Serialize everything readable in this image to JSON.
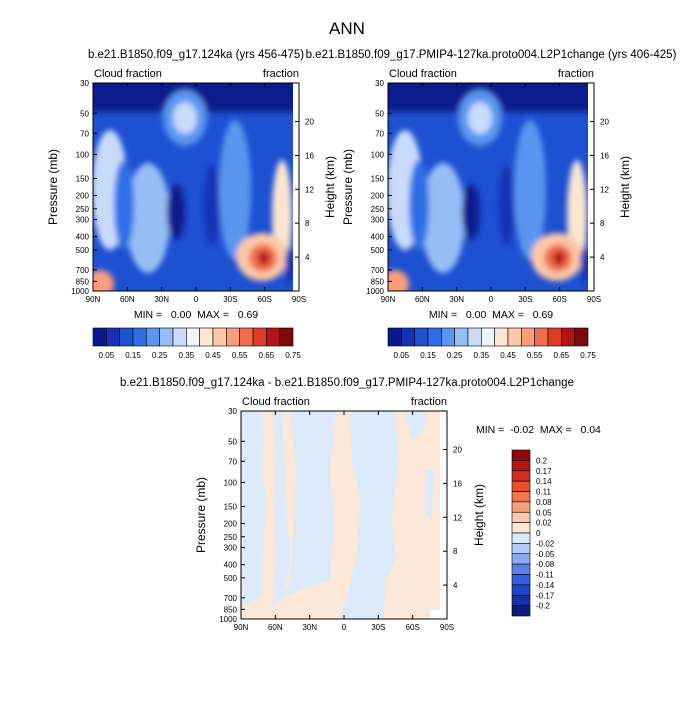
{
  "page_title": "ANN",
  "chart_data": [
    {
      "type": "heatmap",
      "title": "b.e21.B1850.f09_g17.124ka (yrs 456-475)",
      "left_label": "Cloud fraction",
      "right_label": "fraction",
      "ylabel": "Pressure (mb)",
      "ylabel2": "Height (km)",
      "x_ticks": [
        "90N",
        "60N",
        "30N",
        "0",
        "30S",
        "60S",
        "90S"
      ],
      "y_ticks": [
        "30",
        "50",
        "70",
        "100",
        "150",
        "200",
        "250",
        "300",
        "400",
        "500",
        "700",
        "850",
        "1000"
      ],
      "y2_ticks": [
        "20",
        "16",
        "12",
        "8",
        "4"
      ],
      "stats": "MIN =   0.00  MAX =   0.69",
      "min": 0.0,
      "max": 0.69,
      "colorbar_labels": [
        "0.05",
        "0.15",
        "0.25",
        "0.35",
        "0.45",
        "0.55",
        "0.65",
        "0.75"
      ],
      "colorbar_colors": [
        "#0a1a8c",
        "#1432b4",
        "#1e50d2",
        "#2d6ee6",
        "#5a96f0",
        "#96bef5",
        "#c8dcfa",
        "#f0f4fc",
        "#fce6d2",
        "#fcc8a8",
        "#fa9e7c",
        "#f06e50",
        "#dc3c28",
        "#b41414",
        "#7d0a0a"
      ]
    },
    {
      "type": "heatmap",
      "title": "b.e21.B1850.f09_g17.PMIP4-127ka.proto004.L2P1change (yrs 406-425)",
      "left_label": "Cloud fraction",
      "right_label": "fraction",
      "ylabel": "Pressure (mb)",
      "ylabel2": "Height (km)",
      "x_ticks": [
        "90N",
        "60N",
        "30N",
        "0",
        "30S",
        "60S",
        "90S"
      ],
      "y_ticks": [
        "30",
        "50",
        "70",
        "100",
        "150",
        "200",
        "250",
        "300",
        "400",
        "500",
        "700",
        "850",
        "1000"
      ],
      "y2_ticks": [
        "20",
        "16",
        "12",
        "8",
        "4"
      ],
      "stats": "MIN =   0.00  MAX =   0.69",
      "min": 0.0,
      "max": 0.69,
      "colorbar_labels": [
        "0.05",
        "0.15",
        "0.25",
        "0.35",
        "0.45",
        "0.55",
        "0.65",
        "0.75"
      ],
      "colorbar_colors": [
        "#0a1a8c",
        "#1432b4",
        "#1e50d2",
        "#2d6ee6",
        "#5a96f0",
        "#96bef5",
        "#c8dcfa",
        "#f0f4fc",
        "#fce6d2",
        "#fcc8a8",
        "#fa9e7c",
        "#f06e50",
        "#dc3c28",
        "#b41414",
        "#7d0a0a"
      ]
    },
    {
      "type": "heatmap",
      "title": "b.e21.B1850.f09_g17.124ka - b.e21.B1850.f09_g17.PMIP4-127ka.proto004.L2P1change",
      "left_label": "Cloud fraction",
      "right_label": "fraction",
      "ylabel": "Pressure (mb)",
      "ylabel2": "Height (km)",
      "x_ticks": [
        "90N",
        "60N",
        "30N",
        "0",
        "30S",
        "60S",
        "90S"
      ],
      "y_ticks": [
        "30",
        "50",
        "70",
        "100",
        "150",
        "200",
        "250",
        "300",
        "400",
        "500",
        "700",
        "850",
        "1000"
      ],
      "y2_ticks": [
        "20",
        "16",
        "12",
        "8",
        "4"
      ],
      "stats": "MIN =  -0.02  MAX =   0.04",
      "min": -0.02,
      "max": 0.04,
      "colorbar_labels": [
        "0.2",
        "0.17",
        "0.14",
        "0.11",
        "0.08",
        "0.05",
        "0.02",
        "0",
        "-0.02",
        "-0.05",
        "-0.08",
        "-0.11",
        "-0.14",
        "-0.17",
        "-0.2"
      ],
      "colorbar_colors": [
        "#8c0a0a",
        "#b41414",
        "#d22d1e",
        "#e6502d",
        "#f0784b",
        "#f5a07d",
        "#fac8aa",
        "#fce8d8",
        "#dce9f8",
        "#b4ccf5",
        "#8caaf0",
        "#5a82e6",
        "#3260dc",
        "#1e46c8",
        "#1432a0",
        "#0a1e7d"
      ]
    }
  ]
}
